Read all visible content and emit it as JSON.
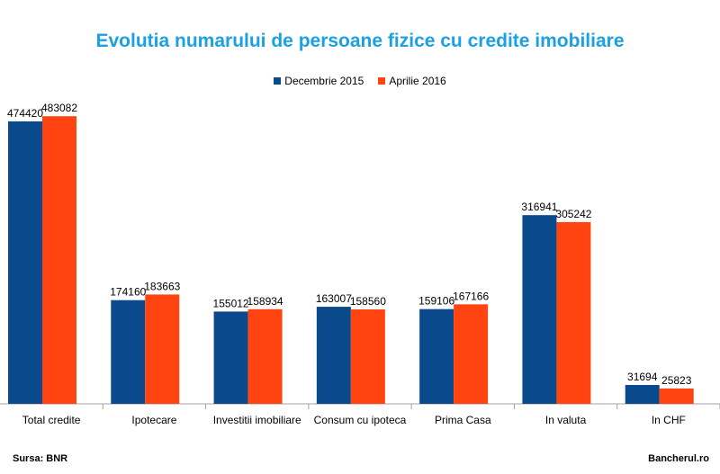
{
  "chart_data": {
    "type": "bar",
    "title": "Evolutia numarului de persoane fizice cu credite imobiliare",
    "categories": [
      "Total credite",
      "Ipotecare",
      "Investitii imobiliare",
      "Consum cu ipoteca",
      "Prima Casa",
      "In valuta",
      "In CHF"
    ],
    "series": [
      {
        "name": "Decembrie 2015",
        "color": "#0a4a8c",
        "values": [
          474420,
          174160,
          155012,
          163007,
          159106,
          316941,
          31694
        ]
      },
      {
        "name": "Aprilie 2016",
        "color": "#ff4411",
        "values": [
          483082,
          183663,
          158934,
          158560,
          167166,
          305242,
          25823
        ]
      }
    ],
    "ylim": [
      0,
      500000
    ],
    "legend_position": "top-center",
    "grid": false
  },
  "footer": {
    "source": "Sursa: BNR",
    "brand": "Bancherul.ro"
  }
}
